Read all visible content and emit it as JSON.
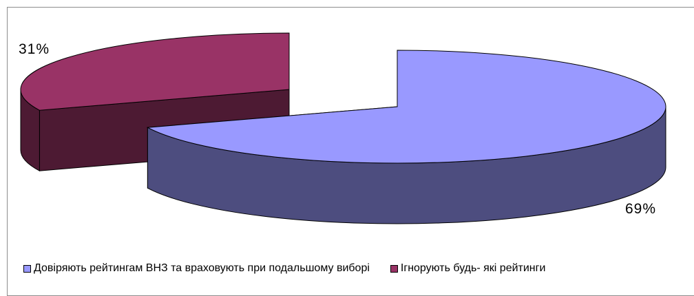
{
  "chart_data": {
    "type": "pie",
    "style": "3d-exploded",
    "slices": [
      {
        "label": "Довіряють рейтингам ВНЗ та враховують при подальшому виборі",
        "value": 69,
        "display": "69%",
        "top_color": "#9999ff",
        "side_color": "#4d4d7f"
      },
      {
        "label": "Ігнорують будь- які рейтинги",
        "value": 31,
        "display": "31%",
        "top_color": "#993366",
        "side_color": "#4d1a33"
      }
    ],
    "legend_position": "bottom"
  }
}
